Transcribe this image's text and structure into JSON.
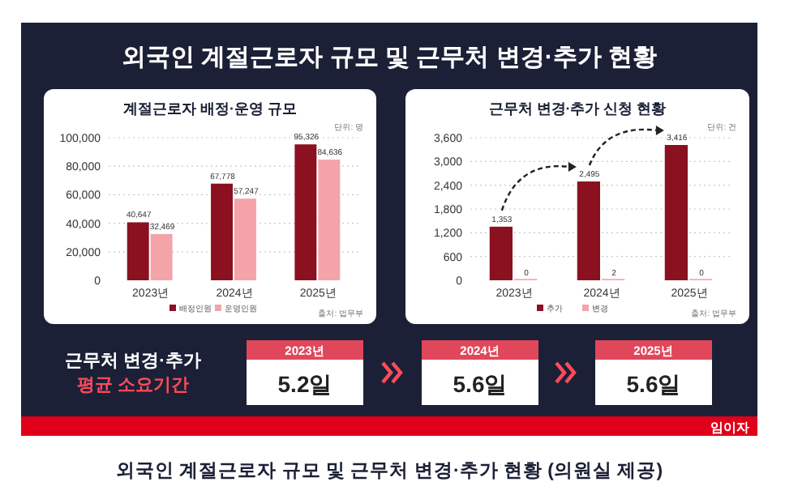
{
  "chart_data": [
    {
      "type": "bar",
      "title": "계절근로자 배정·운영 규모",
      "categories": [
        "2023년",
        "2024년",
        "2025년"
      ],
      "series": [
        {
          "name": "배정인원",
          "color": "#8b1020",
          "values": [
            40647,
            67778,
            95326
          ],
          "value_labels": [
            "40,647",
            "67,778",
            "95,326"
          ]
        },
        {
          "name": "운영인원",
          "color": "#f4a3a8",
          "values": [
            32469,
            57247,
            84636
          ],
          "value_labels": [
            "32,469",
            "57,247",
            "84,636"
          ]
        }
      ],
      "ylim": [
        0,
        100000
      ],
      "yticks": [
        {
          "value": 0,
          "label": "0"
        },
        {
          "value": 20000,
          "label": "20,000"
        },
        {
          "value": 40000,
          "label": "40,000"
        },
        {
          "value": 60000,
          "label": "60,000"
        },
        {
          "value": 80000,
          "label": "80,000"
        },
        {
          "value": 100000,
          "label": "100,000"
        }
      ],
      "grid": "y",
      "legend": "bottom",
      "annotations": [
        "단위: 명",
        "출처: 법무부"
      ]
    },
    {
      "type": "bar",
      "title": "근무처 변경·추가 신청 현황",
      "categories": [
        "2023년",
        "2024년",
        "2025년"
      ],
      "series": [
        {
          "name": "추가",
          "color": "#8b1020",
          "values": [
            1353,
            2495,
            3416
          ],
          "value_labels": [
            "1,353",
            "2,495",
            "3,416"
          ]
        },
        {
          "name": "변경",
          "color": "#f4a3a8",
          "values": [
            0,
            2,
            0
          ],
          "value_labels": [
            "0",
            "2",
            "0"
          ]
        }
      ],
      "ylim": [
        0,
        3600
      ],
      "yticks": [
        0,
        600,
        {
          "value": 1200,
          "label": "1,200"
        },
        {
          "value": 1800,
          "label": "1,800"
        },
        {
          "value": 2400,
          "label": "2,400"
        },
        {
          "value": 3000,
          "label": "3,000"
        },
        {
          "value": 3600,
          "label": "3,600"
        }
      ],
      "grid": "y",
      "legend": "bottom",
      "annotations": [
        "단위: 건",
        "출처: 법무부"
      ]
    },
    {
      "type": "other",
      "title": "근무처 변경·추가",
      "subtitle": "평균 소요기간",
      "categories": [
        "2023년",
        "2024년",
        "2025년"
      ],
      "values": [
        5.2,
        5.6,
        5.6
      ],
      "value_labels": [
        "5.2일",
        "5.6일",
        "5.6일"
      ],
      "annotations": [
        "외국인 계절근로자 규모 및 근무처 변경·추가 현황",
        "외국인 계절근로자 규모 및 근무처 변경·추가 현황 (의원실 제공)",
        "임이자"
      ]
    }
  ]
}
